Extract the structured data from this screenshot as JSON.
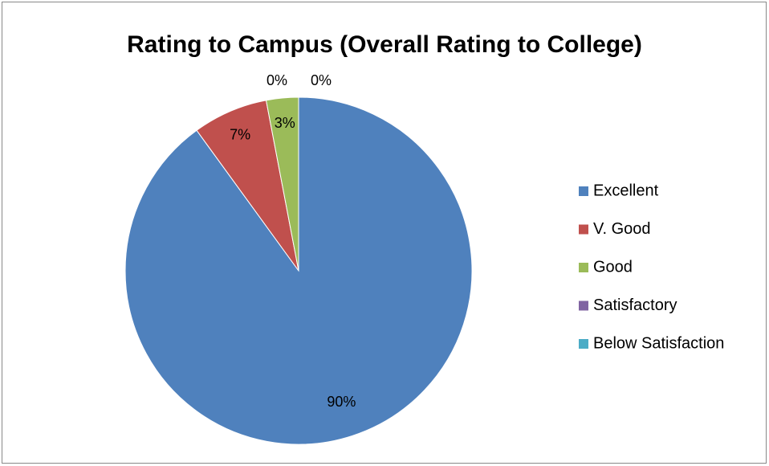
{
  "chart_data": {
    "type": "pie",
    "title": "Rating to Campus (Overall Rating to College)",
    "categories": [
      "Excellent",
      "V. Good",
      "Good",
      "Satisfactory",
      "Below Satisfaction"
    ],
    "values": [
      90,
      7,
      3,
      0,
      0
    ],
    "value_labels": [
      "90%",
      "7%",
      "3%",
      "0%",
      "0%"
    ],
    "colors": [
      "#4f81bd",
      "#c0504d",
      "#9bbb59",
      "#8064a2",
      "#4bacc6"
    ],
    "legend": "right"
  }
}
